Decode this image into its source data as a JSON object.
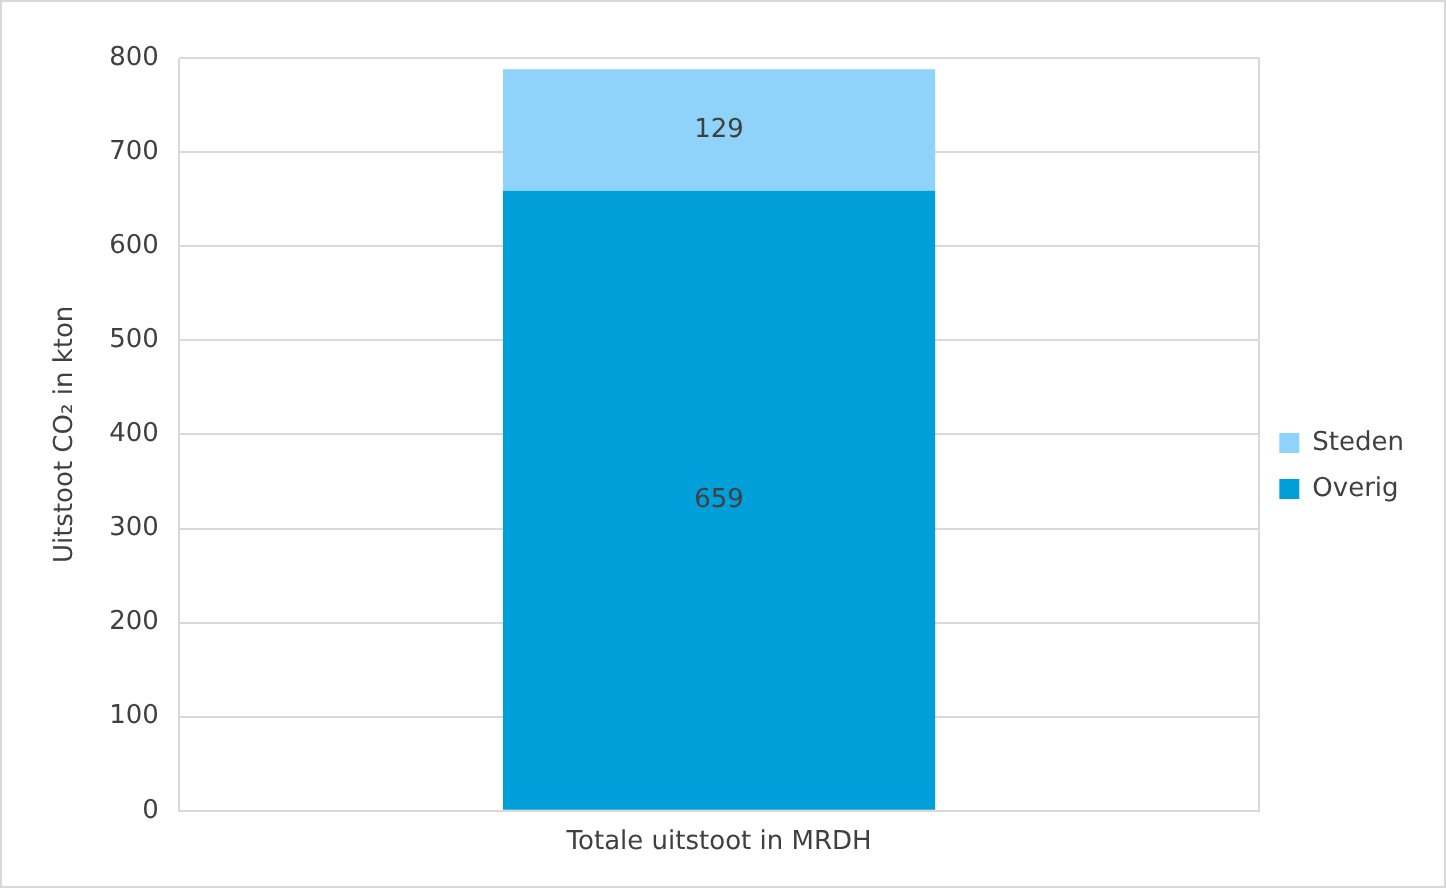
{
  "chart_data": {
    "type": "bar",
    "stacked": true,
    "ylabel": "Uitstoot CO₂ in kton",
    "categories": [
      "Totale uitstoot in MRDH"
    ],
    "series": [
      {
        "name": "Overig",
        "color": "#009fda",
        "values": [
          659
        ]
      },
      {
        "name": "Steden",
        "color": "#8fd3fb",
        "values": [
          129
        ]
      }
    ],
    "ylim": [
      0,
      800
    ],
    "yticks": [
      0,
      100,
      200,
      300,
      400,
      500,
      600,
      700,
      800
    ],
    "grid": true,
    "legend": "right",
    "data_labels": true
  }
}
